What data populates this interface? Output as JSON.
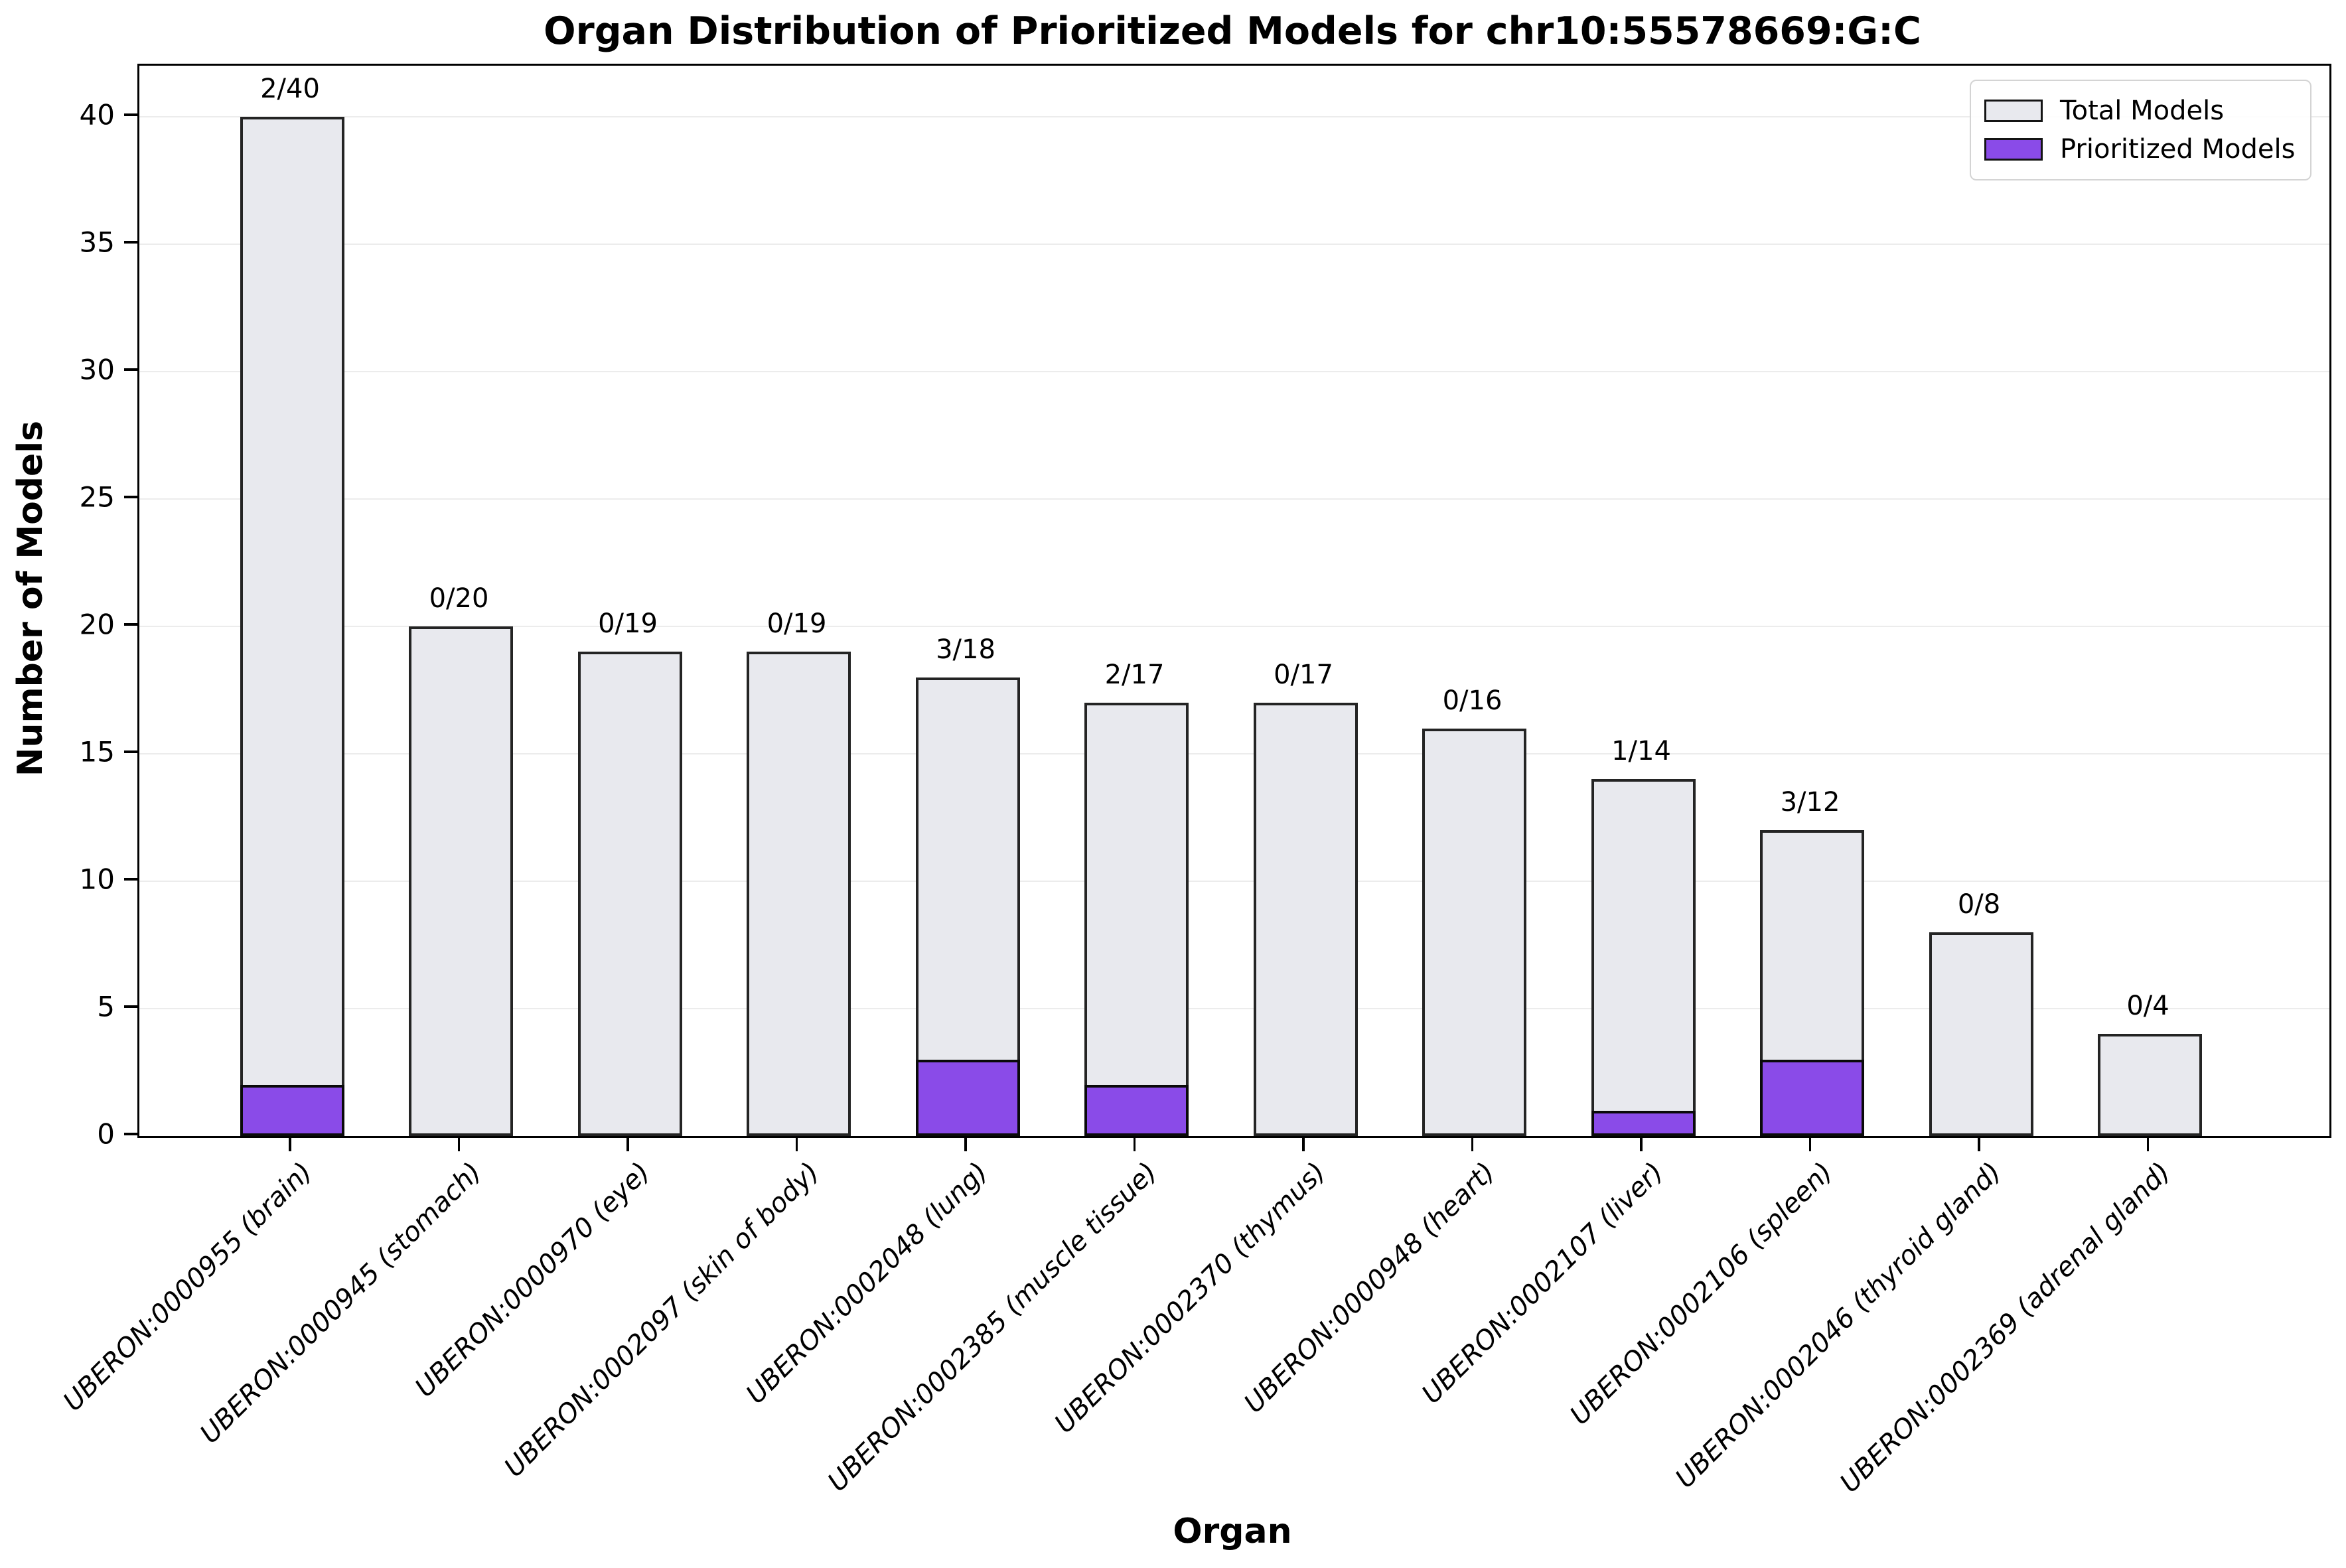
{
  "chart_data": {
    "type": "bar",
    "title": "Organ Distribution of Prioritized Models for chr10:55578669:G:C",
    "xlabel": "Organ",
    "ylabel": "Number of Models",
    "ylim": [
      0,
      42
    ],
    "yticks": [
      0,
      5,
      10,
      15,
      20,
      25,
      30,
      35,
      40
    ],
    "grid": "horizontal-light",
    "legend_position": "upper right",
    "categories": [
      "UBERON:0000955 (brain)",
      "UBERON:0000945 (stomach)",
      "UBERON:0000970 (eye)",
      "UBERON:0002097 (skin of body)",
      "UBERON:0002048 (lung)",
      "UBERON:0002385 (muscle tissue)",
      "UBERON:0002370 (thymus)",
      "UBERON:0000948 (heart)",
      "UBERON:0002107 (liver)",
      "UBERON:0002106 (spleen)",
      "UBERON:0002046 (thyroid gland)",
      "UBERON:0002369 (adrenal gland)"
    ],
    "series": [
      {
        "name": "Total Models",
        "values": [
          40,
          20,
          19,
          19,
          18,
          17,
          17,
          16,
          14,
          12,
          8,
          4
        ],
        "color": "#e8e9ee"
      },
      {
        "name": "Prioritized Models",
        "values": [
          2,
          0,
          0,
          0,
          3,
          2,
          0,
          0,
          1,
          3,
          0,
          0
        ],
        "color": "#8a4be8"
      }
    ],
    "bar_annotations": [
      "2/40",
      "0/20",
      "0/19",
      "0/19",
      "3/18",
      "2/17",
      "0/17",
      "0/16",
      "1/14",
      "3/12",
      "0/8",
      "0/4"
    ],
    "colors": {
      "total_fill": "#e8e9ee",
      "prioritized_fill": "#8a4be8",
      "bar_edge": "#242424",
      "gridline": "#ececec",
      "spine": "#000000",
      "background": "#ffffff",
      "legend_border": "#d4d4d4"
    }
  }
}
